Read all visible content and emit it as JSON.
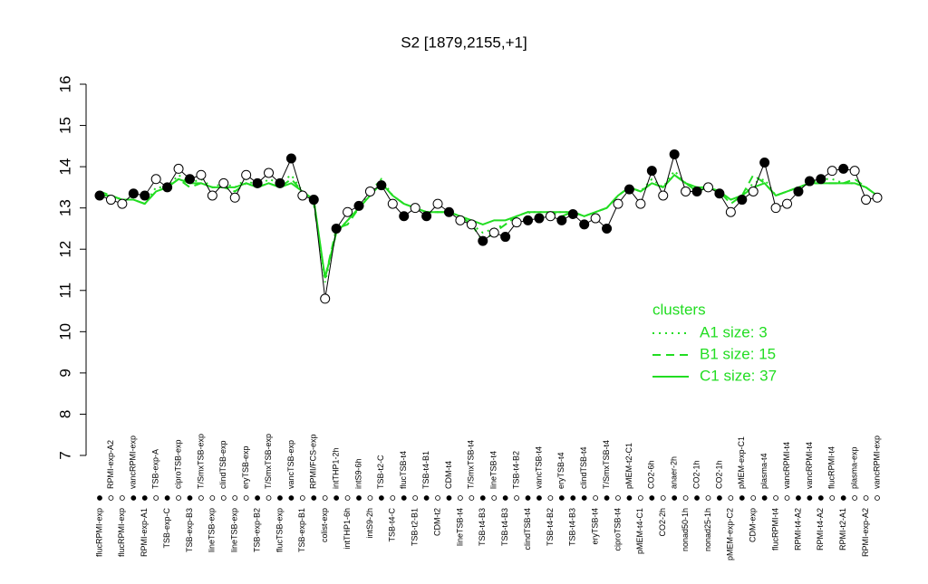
{
  "chart_data": {
    "type": "scatter",
    "title": "S2 [1879,2155,+1]",
    "categories": [
      "flucRPMI-exp",
      "RPMI-exp-A2",
      "flucRPMI-exp",
      "vancRPMI-exp",
      "RPMI-exp-A1",
      "TSB-exp-A",
      "TSB-exp-C",
      "ciproTSB-exp",
      "TSB-exp-B3",
      "T/SmxTSB-exp",
      "lineTSB-exp",
      "clindTSB-exp",
      "lineTSB-exp",
      "eryTSB-exp",
      "TSB-exp-B2",
      "T/SmxTSB-exp",
      "flucTSB-exp",
      "vancTSB-exp",
      "TSB-exp-B1",
      "RPMI/FCS-exp",
      "colist-exp",
      "intTHP1-2h",
      "intTHP1-6h",
      "intS9-6h",
      "intS9-2h",
      "TSB-t2-C",
      "TSB-t4-C",
      "flucTSB-t4",
      "TSB-t2-B1",
      "TSB-t4-B1",
      "CDM-t2",
      "CDM-t4",
      "lineTSB-t4",
      "T/SmxTSB-t4",
      "TSB-t4-B3",
      "lineTSB-t4",
      "TSB-t4-B3",
      "TSB-t4-B2",
      "clindTSB-t4",
      "vancTSB-t4",
      "TSB-t4-B2",
      "eryTSB-t4",
      "TSB-t4-B3",
      "clindTSB-t4",
      "eryTSB-t4",
      "T/SmxTSB-t4",
      "ciproTSB-t4",
      "pMEM-t2-C1",
      "pMEM-t4-C1",
      "CO2-6h",
      "CO2-2h",
      "anaer-2h",
      "nonad50-1h",
      "CO2-1h",
      "nonad25-1h",
      "CO2-1h",
      "pMEM-exp-C2",
      "pMEM-exp-C1",
      "CDM-exp",
      "plasma-t4",
      "flucRPMI-t4",
      "vancRPMI-t4",
      "RPMI-t4-A2",
      "vancRPMI-t4",
      "RPMI-t4-A2",
      "flucRPMI-t4",
      "RPMI-t2-A1",
      "plasma-exp",
      "RPMI-exp-A2",
      "vancRPMI-exp"
    ],
    "values": [
      13.3,
      13.2,
      13.1,
      13.35,
      13.3,
      13.7,
      13.5,
      13.95,
      13.7,
      13.8,
      13.3,
      13.6,
      13.25,
      13.8,
      13.6,
      13.85,
      13.6,
      14.2,
      13.3,
      13.2,
      10.8,
      12.5,
      12.9,
      13.05,
      13.4,
      13.55,
      13.1,
      12.8,
      13.0,
      12.8,
      13.1,
      12.9,
      12.7,
      12.6,
      12.2,
      12.4,
      12.3,
      12.65,
      12.7,
      12.75,
      12.8,
      12.7,
      12.85,
      12.6,
      12.75,
      12.5,
      13.1,
      13.45,
      13.1,
      13.9,
      13.3,
      14.3,
      13.4,
      13.4,
      13.5,
      13.35,
      12.9,
      13.2,
      13.4,
      14.1,
      13.0,
      13.1,
      13.4,
      13.65,
      13.7,
      13.9,
      13.95,
      13.9,
      13.2,
      13.25
    ],
    "point_fill": [
      "black",
      "white",
      "white",
      "black",
      "black",
      "white",
      "black",
      "white",
      "black",
      "white",
      "white",
      "white",
      "white",
      "white",
      "black",
      "white",
      "black",
      "black",
      "white",
      "black",
      "white",
      "black",
      "white",
      "black",
      "white",
      "black",
      "white",
      "black",
      "white",
      "black",
      "white",
      "black",
      "white",
      "white",
      "black",
      "white",
      "black",
      "white",
      "black",
      "black",
      "white",
      "black",
      "black",
      "black",
      "white",
      "black",
      "white",
      "black",
      "white",
      "black",
      "white",
      "black",
      "white",
      "black",
      "white",
      "black",
      "white",
      "black",
      "white",
      "black",
      "white",
      "white",
      "black",
      "black",
      "black",
      "white",
      "black",
      "white",
      "white",
      "white"
    ],
    "legend_title": "clusters",
    "series": [
      {
        "name": "A1 size: 3",
        "color": "#22dd22",
        "dash": "dotted",
        "values": [
          13.3,
          13.3,
          13.2,
          13.2,
          13.1,
          13.5,
          13.5,
          13.8,
          13.6,
          13.7,
          13.5,
          13.6,
          13.5,
          13.7,
          13.5,
          13.7,
          13.6,
          13.8,
          13.4,
          13.2,
          11.2,
          12.4,
          12.7,
          13.0,
          13.4,
          13.7,
          13.3,
          13.1,
          13.0,
          12.9,
          12.9,
          12.9,
          12.8,
          12.6,
          12.4,
          12.5,
          12.6,
          12.8,
          12.9,
          12.9,
          12.9,
          12.9,
          12.9,
          12.8,
          12.9,
          13.0,
          13.3,
          13.5,
          13.4,
          13.7,
          13.5,
          13.9,
          13.6,
          13.5,
          13.5,
          13.4,
          13.2,
          13.3,
          13.6,
          13.7,
          13.3,
          13.4,
          13.5,
          13.6,
          13.7,
          13.7,
          13.6,
          13.6,
          13.5,
          13.3
        ]
      },
      {
        "name": "B1 size: 15",
        "color": "#22dd22",
        "dash": "dashed",
        "values": [
          13.4,
          13.3,
          13.2,
          13.2,
          13.1,
          13.4,
          13.5,
          13.7,
          13.5,
          13.6,
          13.5,
          13.5,
          13.4,
          13.6,
          13.5,
          13.6,
          13.5,
          13.7,
          13.4,
          13.1,
          11.3,
          12.5,
          12.6,
          13.0,
          13.3,
          13.6,
          13.3,
          13.1,
          13.0,
          12.9,
          12.9,
          12.9,
          12.8,
          12.6,
          12.2,
          12.4,
          12.6,
          12.8,
          12.9,
          12.8,
          12.9,
          12.8,
          12.9,
          12.8,
          12.9,
          13.0,
          13.3,
          13.5,
          13.4,
          13.6,
          13.5,
          13.8,
          13.6,
          13.4,
          13.5,
          13.4,
          13.1,
          13.3,
          13.8,
          13.6,
          13.3,
          13.4,
          13.5,
          13.6,
          13.6,
          13.6,
          13.6,
          13.7,
          13.5,
          13.3
        ]
      },
      {
        "name": "C1 size: 37",
        "color": "#22dd22",
        "dash": "solid",
        "values": [
          13.3,
          13.3,
          13.2,
          13.2,
          13.1,
          13.4,
          13.5,
          13.7,
          13.6,
          13.6,
          13.5,
          13.5,
          13.5,
          13.6,
          13.5,
          13.6,
          13.5,
          13.6,
          13.4,
          13.2,
          11.3,
          12.4,
          12.7,
          13.0,
          13.3,
          13.6,
          13.3,
          13.1,
          13.0,
          12.9,
          12.9,
          12.9,
          12.8,
          12.7,
          12.6,
          12.7,
          12.7,
          12.8,
          12.9,
          12.9,
          12.9,
          12.9,
          12.9,
          12.8,
          12.9,
          13.0,
          13.3,
          13.5,
          13.4,
          13.6,
          13.5,
          13.8,
          13.6,
          13.5,
          13.5,
          13.4,
          13.2,
          13.3,
          13.5,
          13.6,
          13.3,
          13.4,
          13.5,
          13.6,
          13.6,
          13.6,
          13.6,
          13.6,
          13.5,
          13.3
        ]
      }
    ],
    "ylim": [
      7,
      16
    ],
    "yticks": [
      7,
      8,
      9,
      10,
      11,
      12,
      13,
      14,
      15,
      16
    ]
  }
}
